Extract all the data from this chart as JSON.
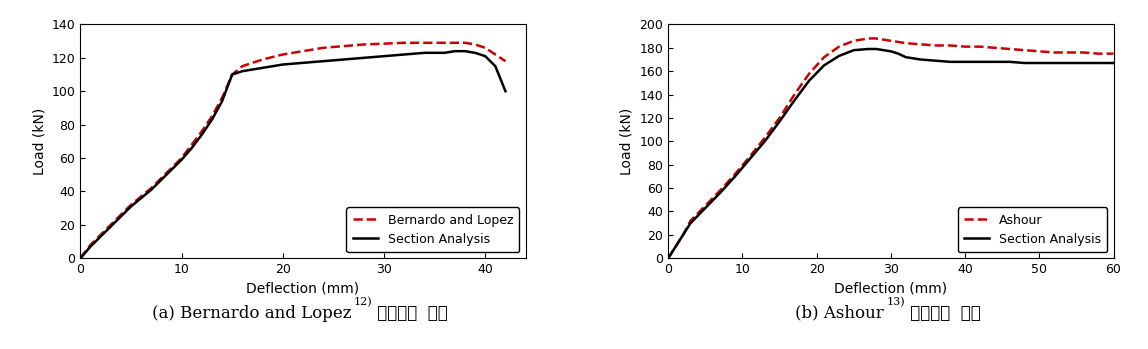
{
  "left": {
    "xlabel": "Deflection (mm)",
    "ylabel": "Load (kN)",
    "xlim": [
      0,
      44
    ],
    "ylim": [
      0,
      140
    ],
    "xticks": [
      0,
      10,
      20,
      30,
      40
    ],
    "yticks": [
      0,
      20,
      40,
      60,
      80,
      100,
      120,
      140
    ],
    "legend1_label": "Bernardo and Lopez",
    "legend2_label": "Section Analysis",
    "ref_x": [
      0,
      1,
      2,
      3,
      4,
      5,
      6,
      7,
      8,
      9,
      10,
      11,
      12,
      13,
      14,
      15,
      16,
      18,
      20,
      22,
      24,
      26,
      28,
      30,
      32,
      34,
      36,
      38,
      39,
      40,
      41,
      42
    ],
    "ref_y": [
      0,
      8,
      14,
      20,
      26,
      32,
      37,
      42,
      48,
      54,
      60,
      68,
      76,
      85,
      96,
      110,
      115,
      119,
      122,
      124,
      126,
      127,
      128,
      128.5,
      129,
      129,
      129,
      129,
      128,
      126,
      122,
      118
    ],
    "sec_x": [
      0,
      1,
      2,
      3,
      4,
      5,
      6,
      7,
      8,
      9,
      10,
      11,
      12,
      13,
      14,
      15,
      16,
      18,
      20,
      22,
      24,
      26,
      28,
      30,
      32,
      34,
      36,
      37,
      38,
      39,
      40,
      41,
      42
    ],
    "sec_y": [
      0,
      7,
      13,
      19,
      25,
      31,
      36,
      41,
      47,
      53,
      59,
      66,
      74,
      83,
      94,
      110,
      112,
      114,
      116,
      117,
      118,
      119,
      120,
      121,
      122,
      123,
      123,
      124,
      124,
      123,
      121,
      115,
      100
    ],
    "caption_main": "(a) Bernardo and Lopez",
    "caption_super": "12)",
    "caption_rest": " 결과값과  비교"
  },
  "right": {
    "xlabel": "Deflection (mm)",
    "ylabel": "Load (kN)",
    "xlim": [
      0,
      60
    ],
    "ylim": [
      0,
      200
    ],
    "xticks": [
      0,
      10,
      20,
      30,
      40,
      50,
      60
    ],
    "yticks": [
      0,
      20,
      40,
      60,
      80,
      100,
      120,
      140,
      160,
      180,
      200
    ],
    "legend1_label": "Ashour",
    "legend2_label": "Section Analysis",
    "ref_x": [
      0,
      1,
      2,
      3,
      5,
      7,
      9,
      11,
      13,
      15,
      17,
      19,
      21,
      23,
      25,
      27,
      28,
      29,
      30,
      32,
      34,
      36,
      38,
      40,
      42,
      44,
      46,
      48,
      50,
      52,
      54,
      56,
      58,
      60
    ],
    "ref_y": [
      0,
      10,
      20,
      32,
      45,
      58,
      72,
      87,
      103,
      120,
      140,
      158,
      172,
      181,
      186,
      188,
      188,
      187,
      186,
      184,
      183,
      182,
      182,
      181,
      181,
      180,
      179,
      178,
      177,
      176,
      176,
      176,
      175,
      175
    ],
    "sec_x": [
      0,
      1,
      2,
      3,
      5,
      7,
      9,
      11,
      13,
      15,
      17,
      19,
      21,
      23,
      25,
      27,
      28,
      29,
      30,
      31,
      32,
      34,
      36,
      38,
      40,
      42,
      44,
      46,
      48,
      50,
      52,
      54,
      56,
      58,
      60
    ],
    "sec_y": [
      0,
      10,
      20,
      30,
      43,
      56,
      70,
      85,
      100,
      117,
      135,
      152,
      165,
      173,
      178,
      179,
      179,
      178,
      177,
      175,
      172,
      170,
      169,
      168,
      168,
      168,
      168,
      168,
      167,
      167,
      167,
      167,
      167,
      167,
      167
    ],
    "caption_main": "(b) Ashour",
    "caption_super": "13)",
    "caption_rest": " 결과값과  비교"
  },
  "ref_color": "#cc0000",
  "sec_color": "#000000",
  "ref_linestyle": "--",
  "sec_linestyle": "-",
  "linewidth": 1.8,
  "legend_fontsize": 9,
  "axis_label_fontsize": 10,
  "tick_fontsize": 9,
  "caption_fontsize": 12,
  "caption_super_fontsize": 8,
  "bg_color": "#ffffff"
}
